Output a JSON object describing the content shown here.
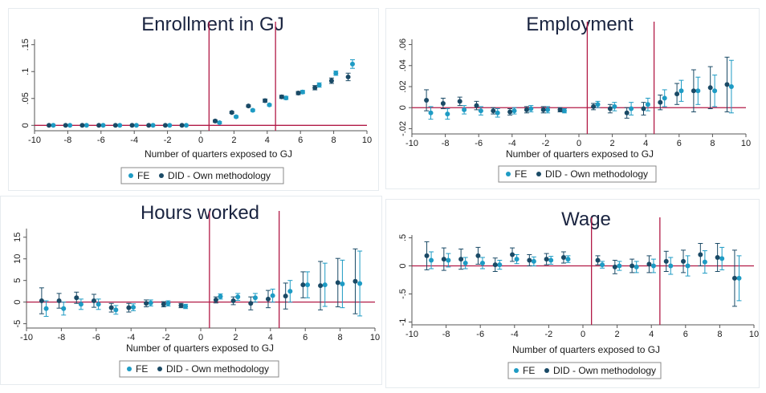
{
  "colors": {
    "fe": "#1e9bc4",
    "did": "#1a4a66",
    "refline": "#b21a46",
    "axis": "#555555",
    "title": "#1a2440"
  },
  "chart_data": [
    {
      "type": "scatter",
      "title": "Enrollment in GJ",
      "xlabel": "Number of quarters exposed to GJ",
      "ylabel": "",
      "xlim": [
        -10,
        10
      ],
      "ylim": [
        -0.01,
        0.16
      ],
      "xticks": [
        -10,
        -8,
        -6,
        -4,
        -2,
        0,
        2,
        4,
        6,
        8,
        10
      ],
      "yticks": [
        0,
        0.05,
        0.1,
        0.15
      ],
      "ytick_labels": [
        "0",
        ".05",
        ".1",
        ".15"
      ],
      "vlines": [
        0.5,
        4.5
      ],
      "hline": 0,
      "legend": [
        "FE",
        "DID - Own methodology"
      ],
      "quarters": [
        -9,
        -8,
        -7,
        -6,
        -5,
        -4,
        -3,
        -2,
        -1,
        1,
        2,
        3,
        4,
        5,
        6,
        7,
        8,
        9
      ],
      "series": [
        {
          "name": "FE",
          "values": [
            0,
            0,
            0,
            0,
            0,
            0,
            0,
            0,
            0,
            0.005,
            0.016,
            0.028,
            0.038,
            0.051,
            0.062,
            0.075,
            0.097,
            0.114
          ],
          "err": [
            0,
            0,
            0,
            0,
            0,
            0,
            0,
            0,
            0,
            0.002,
            0.002,
            0.002,
            0.002,
            0.003,
            0.003,
            0.004,
            0.004,
            0.008
          ]
        },
        {
          "name": "DID - Own methodology",
          "values": [
            0,
            0,
            0,
            0,
            0,
            0,
            0,
            0,
            0,
            0.008,
            0.024,
            0.036,
            0.046,
            0.053,
            0.06,
            0.07,
            0.083,
            0.09
          ],
          "err": [
            0,
            0,
            0,
            0,
            0,
            0,
            0,
            0,
            0,
            0.002,
            0.002,
            0.002,
            0.003,
            0.003,
            0.003,
            0.004,
            0.005,
            0.007
          ]
        }
      ]
    },
    {
      "type": "scatter",
      "title": "Employment",
      "xlabel": "Number of quarters exposed to GJ",
      "ylabel": "",
      "xlim": [
        -10,
        10
      ],
      "ylim": [
        -0.025,
        0.065
      ],
      "xticks": [
        -10,
        -8,
        -6,
        -4,
        -2,
        0,
        2,
        4,
        6,
        8,
        10
      ],
      "yticks": [
        -0.02,
        0,
        0.02,
        0.04,
        0.06
      ],
      "ytick_labels": [
        "-.02",
        "0",
        ".02",
        ".04",
        ".06"
      ],
      "vlines": [
        0.5,
        4.5
      ],
      "hline": 0,
      "legend": [
        "FE",
        "DID - Own methodology"
      ],
      "quarters": [
        -9,
        -8,
        -7,
        -6,
        -5,
        -4,
        -3,
        -2,
        -1,
        1,
        2,
        3,
        4,
        5,
        6,
        7,
        8,
        9
      ],
      "series": [
        {
          "name": "FE",
          "values": [
            -0.005,
            -0.006,
            -0.002,
            -0.003,
            -0.005,
            -0.003,
            -0.001,
            -0.002,
            -0.003,
            0.003,
            0.001,
            -0.001,
            0.003,
            0.009,
            0.016,
            0.016,
            0.016,
            0.02
          ],
          "err": [
            0.006,
            0.005,
            0.004,
            0.004,
            0.004,
            0.003,
            0.003,
            0.003,
            0.002,
            0.003,
            0.004,
            0.006,
            0.006,
            0.008,
            0.01,
            0.013,
            0.015,
            0.025
          ]
        },
        {
          "name": "DID - Own methodology",
          "values": [
            0.007,
            0.004,
            0.006,
            0.002,
            -0.003,
            -0.004,
            -0.002,
            -0.002,
            -0.002,
            0.001,
            -0.001,
            -0.005,
            -0.001,
            0.005,
            0.013,
            0.016,
            0.019,
            0.022
          ],
          "err": [
            0.01,
            0.005,
            0.004,
            0.004,
            0.003,
            0.003,
            0.003,
            0.003,
            0.002,
            0.003,
            0.004,
            0.005,
            0.006,
            0.007,
            0.01,
            0.02,
            0.02,
            0.026
          ]
        }
      ]
    },
    {
      "type": "scatter",
      "title": "Hours worked",
      "xlabel": "Number of quarters exposed to GJ",
      "ylabel": "",
      "xlim": [
        -10,
        10
      ],
      "ylim": [
        -6,
        17
      ],
      "xticks": [
        -10,
        -8,
        -6,
        -4,
        -2,
        0,
        2,
        4,
        6,
        8,
        10
      ],
      "yticks": [
        -5,
        0,
        5,
        10,
        15
      ],
      "ytick_labels": [
        "-5",
        "0",
        "5",
        "10",
        "15"
      ],
      "vlines": [
        0.5,
        4.5
      ],
      "hline": 0,
      "legend": [
        "FE",
        "DID - Own methodology"
      ],
      "quarters": [
        -9,
        -8,
        -7,
        -6,
        -5,
        -4,
        -3,
        -2,
        -1,
        1,
        2,
        3,
        4,
        5,
        6,
        7,
        8,
        9
      ],
      "series": [
        {
          "name": "FE",
          "values": [
            -1.5,
            -1.5,
            -0.5,
            -0.5,
            -1.8,
            -1.2,
            -0.2,
            -0.3,
            -1.0,
            1.3,
            1.2,
            1.0,
            1.5,
            2.5,
            4.0,
            4.0,
            4.2,
            4.3
          ],
          "err": [
            1.8,
            1.5,
            1.2,
            1.2,
            1.0,
            0.8,
            0.7,
            0.6,
            0.5,
            0.6,
            0.8,
            1.0,
            1.5,
            2.5,
            3.0,
            5.0,
            5.5,
            7.5
          ]
        },
        {
          "name": "DID - Own methodology",
          "values": [
            0.3,
            0.3,
            1.0,
            0.3,
            -1.3,
            -1.3,
            -0.3,
            -0.5,
            -0.8,
            0.5,
            0.3,
            -0.3,
            0.7,
            1.4,
            4.0,
            3.8,
            4.5,
            4.8
          ],
          "err": [
            3.0,
            1.7,
            1.3,
            1.5,
            1.0,
            1.0,
            0.8,
            0.6,
            0.5,
            0.7,
            0.9,
            1.5,
            2.0,
            3.0,
            3.0,
            5.6,
            5.6,
            7.5
          ]
        }
      ]
    },
    {
      "type": "scatter",
      "title": "Wage",
      "xlabel": "Number of quarters exposed to GJ",
      "ylabel": "",
      "xlim": [
        -10,
        10
      ],
      "ylim": [
        -1.05,
        0.55
      ],
      "xticks": [
        -10,
        -8,
        -6,
        -4,
        -2,
        0,
        2,
        4,
        6,
        8,
        10
      ],
      "yticks": [
        -1,
        -0.5,
        0,
        0.5
      ],
      "ytick_labels": [
        "-1",
        "-.5",
        "0",
        ".5"
      ],
      "vlines": [
        0.5,
        4.5
      ],
      "hline": 0,
      "legend": [
        "FE",
        "DID - Own methodology"
      ],
      "quarters": [
        -9,
        -8,
        -7,
        -6,
        -5,
        -4,
        -3,
        -2,
        -1,
        1,
        2,
        3,
        4,
        5,
        6,
        7,
        8,
        9
      ],
      "series": [
        {
          "name": "FE",
          "values": [
            0.1,
            0.1,
            0.05,
            0.05,
            0.02,
            0.12,
            0.08,
            0.1,
            0.12,
            0.02,
            0.0,
            -0.02,
            0.0,
            0.0,
            0.0,
            0.07,
            0.13,
            -0.22
          ],
          "err": [
            0.15,
            0.12,
            0.1,
            0.1,
            0.08,
            0.08,
            0.08,
            0.07,
            0.06,
            0.06,
            0.08,
            0.1,
            0.12,
            0.15,
            0.18,
            0.2,
            0.2,
            0.4
          ]
        },
        {
          "name": "DID - Own methodology",
          "values": [
            0.18,
            0.12,
            0.12,
            0.18,
            0.02,
            0.2,
            0.1,
            0.12,
            0.15,
            0.1,
            -0.02,
            0.0,
            0.03,
            0.08,
            0.08,
            0.2,
            0.15,
            -0.22
          ],
          "err": [
            0.25,
            0.2,
            0.18,
            0.15,
            0.12,
            0.12,
            0.1,
            0.1,
            0.1,
            0.08,
            0.12,
            0.12,
            0.15,
            0.18,
            0.2,
            0.2,
            0.25,
            0.5
          ]
        }
      ]
    }
  ]
}
